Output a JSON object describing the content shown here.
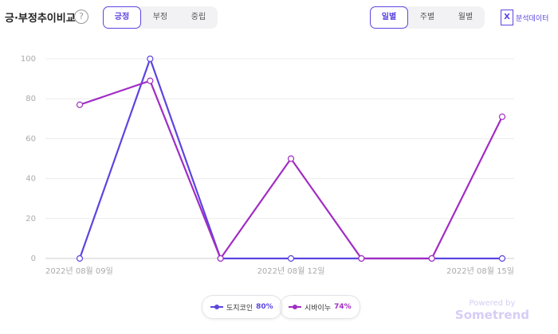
{
  "header": {
    "title": "긍·부정추이비교",
    "help_icon": "?",
    "sentiment_tabs": [
      "긍정",
      "부정",
      "중립"
    ],
    "period_tabs": [
      "일별",
      "주별",
      "월별"
    ],
    "export_label": "분석데이터"
  },
  "chart_data": {
    "type": "line",
    "categories": [
      "2022년 08월 09일",
      null,
      null,
      "2022년 08월 12일",
      null,
      null,
      "2022년 08월 15일"
    ],
    "series": [
      {
        "name": "도지코인",
        "share": "80%",
        "color": "#5b45e0",
        "values": [
          0,
          100,
          0,
          0,
          0,
          0,
          0
        ]
      },
      {
        "name": "시바이누",
        "share": "74%",
        "color": "#a12cc4",
        "values": [
          77,
          89,
          0,
          50,
          0,
          0,
          71
        ]
      }
    ],
    "ylim": [
      0,
      100
    ],
    "yticks": [
      0,
      20,
      40,
      60,
      80,
      100
    ],
    "grid": true
  },
  "watermark": {
    "powered_by": "Powered by",
    "brand": "Sometrend"
  }
}
